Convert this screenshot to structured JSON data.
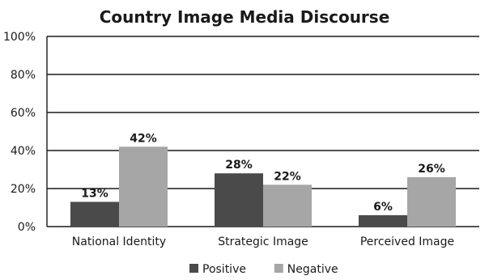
{
  "chart_data": {
    "type": "bar",
    "title": "Country Image Media Discourse",
    "xlabel": "",
    "ylabel": "",
    "categories": [
      "National Identity",
      "Strategic Image",
      "Perceived Image"
    ],
    "series": [
      {
        "name": "Positive",
        "values": [
          13,
          28,
          6
        ],
        "labels": [
          "13%",
          "28%",
          "6%"
        ],
        "color": "#4a4a4a"
      },
      {
        "name": "Negative",
        "values": [
          42,
          22,
          26
        ],
        "labels": [
          "42%",
          "22%",
          "26%"
        ],
        "color": "#a6a6a6"
      }
    ],
    "ylim": [
      0,
      100
    ],
    "yticks": [
      0,
      20,
      40,
      60,
      80,
      100
    ],
    "ytick_labels": [
      "0%",
      "20%",
      "40%",
      "60%",
      "80%",
      "100%"
    ],
    "grid": true,
    "legend_position": "bottom"
  }
}
